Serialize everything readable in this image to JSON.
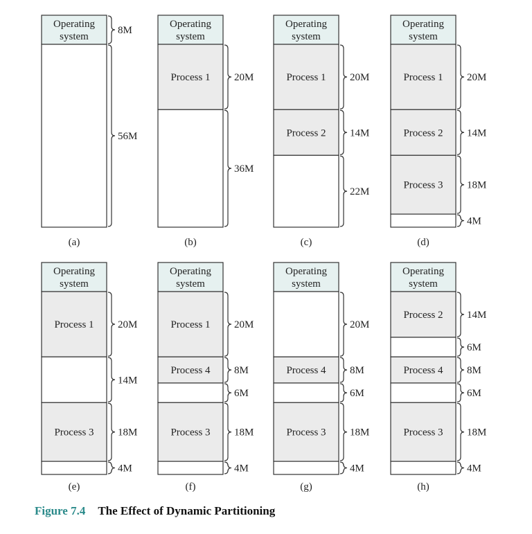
{
  "colors": {
    "os_fill": "#e6f1f0",
    "process_fill": "#ebebeb",
    "free_fill": "#ffffff",
    "stroke": "#333333",
    "caption_accent": "#2a8a8a"
  },
  "caption": {
    "figure_number": "Figure 7.4",
    "title": "The Effect of Dynamic Partitioning"
  },
  "panels": [
    {
      "label": "(a)",
      "segments": [
        {
          "kind": "os",
          "text": "Operating system",
          "size": "8M",
          "mb": 8
        },
        {
          "kind": "free",
          "text": "",
          "size": "56M",
          "mb": 56
        }
      ]
    },
    {
      "label": "(b)",
      "segments": [
        {
          "kind": "os",
          "text": "Operating system",
          "size": "",
          "mb": 8
        },
        {
          "kind": "process",
          "text": "Process 1",
          "size": "20M",
          "mb": 20
        },
        {
          "kind": "free",
          "text": "",
          "size": "36M",
          "mb": 36
        }
      ]
    },
    {
      "label": "(c)",
      "segments": [
        {
          "kind": "os",
          "text": "Operating system",
          "size": "",
          "mb": 8
        },
        {
          "kind": "process",
          "text": "Process 1",
          "size": "20M",
          "mb": 20
        },
        {
          "kind": "process",
          "text": "Process 2",
          "size": "14M",
          "mb": 14
        },
        {
          "kind": "free",
          "text": "",
          "size": "22M",
          "mb": 22
        }
      ]
    },
    {
      "label": "(d)",
      "segments": [
        {
          "kind": "os",
          "text": "Operating system",
          "size": "",
          "mb": 8
        },
        {
          "kind": "process",
          "text": "Process 1",
          "size": "20M",
          "mb": 20
        },
        {
          "kind": "process",
          "text": "Process 2",
          "size": "14M",
          "mb": 14
        },
        {
          "kind": "process",
          "text": "Process 3",
          "size": "18M",
          "mb": 18
        },
        {
          "kind": "free",
          "text": "",
          "size": "4M",
          "mb": 4
        }
      ]
    },
    {
      "label": "(e)",
      "segments": [
        {
          "kind": "os",
          "text": "Operating system",
          "size": "",
          "mb": 8
        },
        {
          "kind": "process",
          "text": "Process 1",
          "size": "20M",
          "mb": 20
        },
        {
          "kind": "free",
          "text": "",
          "size": "14M",
          "mb": 14
        },
        {
          "kind": "process",
          "text": "Process 3",
          "size": "18M",
          "mb": 18
        },
        {
          "kind": "free",
          "text": "",
          "size": "4M",
          "mb": 4
        }
      ]
    },
    {
      "label": "(f)",
      "segments": [
        {
          "kind": "os",
          "text": "Operating system",
          "size": "",
          "mb": 8
        },
        {
          "kind": "process",
          "text": "Process 1",
          "size": "20M",
          "mb": 20
        },
        {
          "kind": "process",
          "text": "Process 4",
          "size": "8M",
          "mb": 8
        },
        {
          "kind": "free",
          "text": "",
          "size": "6M",
          "mb": 6
        },
        {
          "kind": "process",
          "text": "Process 3",
          "size": "18M",
          "mb": 18
        },
        {
          "kind": "free",
          "text": "",
          "size": "4M",
          "mb": 4
        }
      ]
    },
    {
      "label": "(g)",
      "segments": [
        {
          "kind": "os",
          "text": "Operating system",
          "size": "",
          "mb": 8
        },
        {
          "kind": "free",
          "text": "",
          "size": "20M",
          "mb": 20
        },
        {
          "kind": "process",
          "text": "Process 4",
          "size": "8M",
          "mb": 8
        },
        {
          "kind": "free",
          "text": "",
          "size": "6M",
          "mb": 6
        },
        {
          "kind": "process",
          "text": "Process 3",
          "size": "18M",
          "mb": 18
        },
        {
          "kind": "free",
          "text": "",
          "size": "4M",
          "mb": 4
        }
      ]
    },
    {
      "label": "(h)",
      "segments": [
        {
          "kind": "os",
          "text": "Operating system",
          "size": "",
          "mb": 8
        },
        {
          "kind": "process",
          "text": "Process 2",
          "size": "14M",
          "mb": 14
        },
        {
          "kind": "free",
          "text": "",
          "size": "6M",
          "mb": 6
        },
        {
          "kind": "process",
          "text": "Process 4",
          "size": "8M",
          "mb": 8
        },
        {
          "kind": "free",
          "text": "",
          "size": "6M",
          "mb": 6
        },
        {
          "kind": "process",
          "text": "Process 3",
          "size": "18M",
          "mb": 18
        },
        {
          "kind": "free",
          "text": "",
          "size": "4M",
          "mb": 4
        }
      ]
    }
  ]
}
